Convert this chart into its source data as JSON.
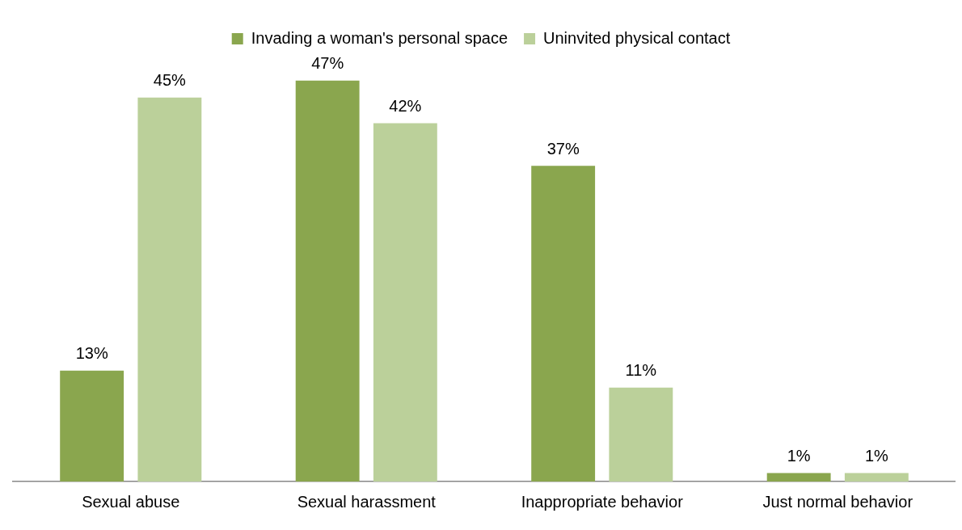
{
  "chart_data": {
    "type": "bar",
    "categories": [
      "Sexual abuse",
      "Sexual harassment",
      "Inappropriate behavior",
      "Just normal behavior"
    ],
    "series": [
      {
        "name": "Invading a woman's personal space",
        "color": "#8aa64e",
        "values": [
          13,
          47,
          37,
          1
        ],
        "value_labels": [
          "13%",
          "47%",
          "37%",
          "1%"
        ]
      },
      {
        "name": "Uninvited physical contact",
        "color": "#bbd09a",
        "values": [
          45,
          42,
          11,
          1
        ],
        "value_labels": [
          "45%",
          "42%",
          "11%",
          "1%"
        ]
      }
    ],
    "grid": false,
    "legend": "top"
  }
}
